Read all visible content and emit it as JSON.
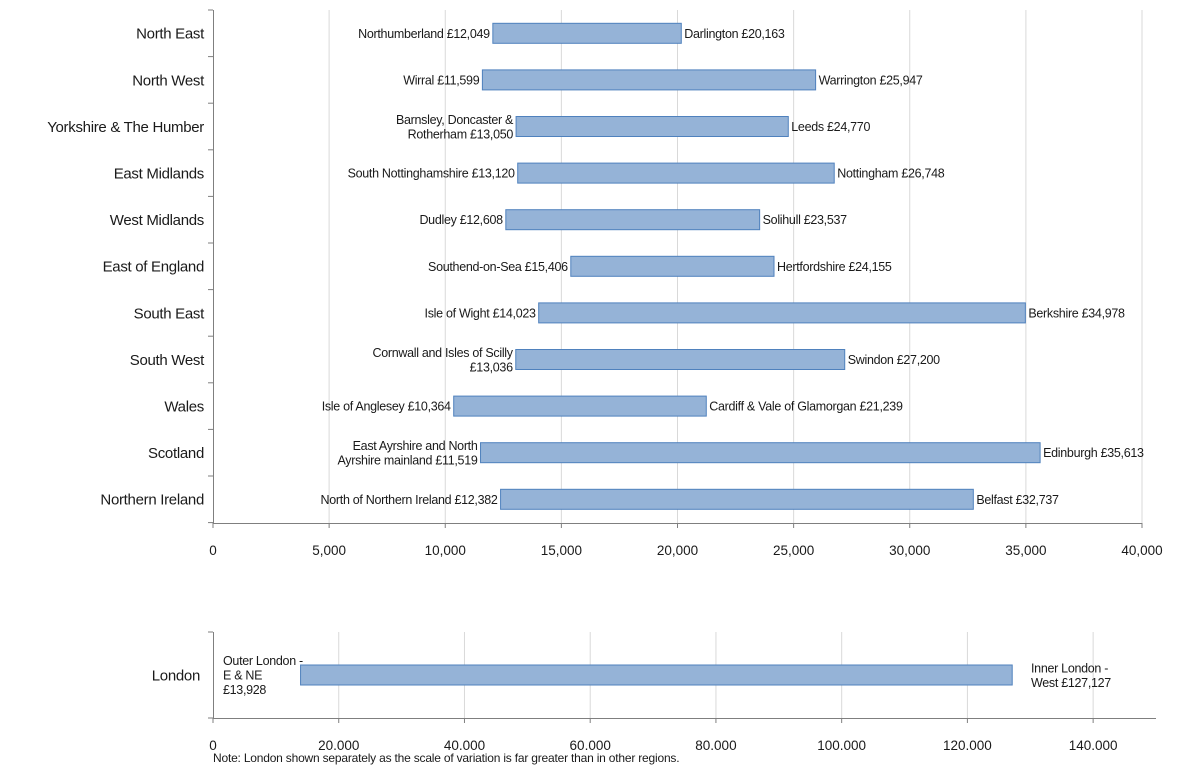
{
  "chart_data": [
    {
      "type": "bar",
      "orientation": "horizontal",
      "style": "floating range bars",
      "xlim": [
        0,
        40000
      ],
      "x_ticks": [
        "0",
        "5,000",
        "10,000",
        "15,000",
        "20,000",
        "25,000",
        "30,000",
        "35,000",
        "40,000"
      ],
      "x_tick_values": [
        0,
        5000,
        10000,
        15000,
        20000,
        25000,
        30000,
        35000,
        40000
      ],
      "grid": "vertical",
      "bar_color": "#95b3d7",
      "bar_edge_color": "#4f81bd",
      "categories": [
        "North East",
        "North West",
        "Yorkshire & The Humber",
        "East Midlands",
        "West Midlands",
        "East of England",
        "South East",
        "South West",
        "Wales",
        "Scotland",
        "Northern Ireland"
      ],
      "series": [
        {
          "low": [
            12049,
            11599,
            13050,
            13120,
            12608,
            15406,
            14023,
            13036,
            10364,
            11519,
            12382
          ],
          "high": [
            20163,
            25947,
            24770,
            26748,
            23537,
            24155,
            34978,
            27200,
            21239,
            35613,
            32737
          ],
          "low_labels": [
            [
              "Northumberland £12,049"
            ],
            [
              "Wirral £11,599"
            ],
            [
              "Barnsley, Doncaster &",
              "Rotherham £13,050"
            ],
            [
              "South Nottinghamshire £13,120"
            ],
            [
              "Dudley £12,608"
            ],
            [
              "Southend-on-Sea £15,406"
            ],
            [
              "Isle of Wight £14,023"
            ],
            [
              "Cornwall and Isles of Scilly",
              "£13,036"
            ],
            [
              "Isle of Anglesey £10,364"
            ],
            [
              "East Ayrshire and North",
              "Ayrshire mainland £11,519"
            ],
            [
              "North of Northern Ireland £12,382"
            ]
          ],
          "high_labels": [
            [
              "Darlington £20,163"
            ],
            [
              "Warrington £25,947"
            ],
            [
              "Leeds £24,770"
            ],
            [
              "Nottingham £26,748"
            ],
            [
              "Solihull £23,537"
            ],
            [
              "Hertfordshire £24,155"
            ],
            [
              "Berkshire £34,978"
            ],
            [
              "Swindon £27,200"
            ],
            [
              "Cardiff & Vale of Glamorgan £21,239"
            ],
            [
              "Edinburgh £35,613"
            ],
            [
              "Belfast £32,737"
            ]
          ]
        }
      ]
    },
    {
      "type": "bar",
      "orientation": "horizontal",
      "style": "floating range bars",
      "xlim": [
        0,
        150000
      ],
      "x_ticks": [
        "0",
        "20,000",
        "40,000",
        "60,000",
        "80,000",
        "100,000",
        "120,000",
        "140,000"
      ],
      "x_tick_values": [
        0,
        20000,
        40000,
        60000,
        80000,
        100000,
        120000,
        140000
      ],
      "grid": "vertical",
      "bar_color": "#95b3d7",
      "bar_edge_color": "#4f81bd",
      "categories": [
        "London"
      ],
      "series": [
        {
          "low": [
            13928
          ],
          "high": [
            127127
          ],
          "low_labels": [
            [
              "Outer London -",
              "E & NE",
              "£13,928"
            ]
          ],
          "high_labels": [
            [
              "Inner London -",
              "West £127,127"
            ]
          ]
        }
      ]
    }
  ],
  "note": "Note: London shown separately as the scale of variation is far greater than in other regions."
}
